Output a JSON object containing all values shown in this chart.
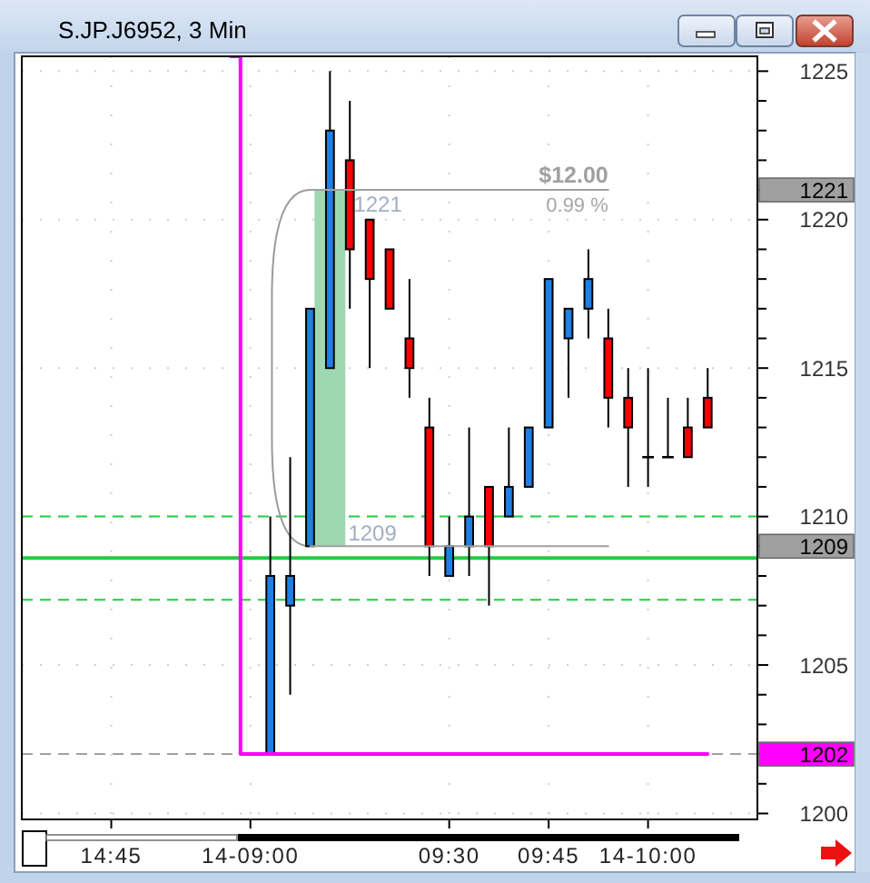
{
  "chart_data": {
    "type": "candlestick",
    "title": "S.JP.J6952, 3 Min",
    "categories": [
      null,
      null,
      null,
      null,
      "14:45",
      null,
      null,
      null,
      null,
      null,
      null,
      "14-09:00",
      null,
      null,
      null,
      null,
      null,
      null,
      null,
      null,
      null,
      "09:30",
      null,
      null,
      null,
      null,
      "09:45",
      null,
      null,
      null,
      null,
      "14-10:00",
      null,
      null,
      null,
      null,
      null
    ],
    "ylim": [
      1199.8,
      1225.5
    ],
    "yticks": [
      1200,
      {
        "value": 1201,
        "label": null
      },
      1202,
      {
        "value": 1203,
        "label": null
      },
      {
        "value": 1204,
        "label": null
      },
      1205,
      {
        "value": 1206,
        "label": null
      },
      {
        "value": 1207,
        "label": null
      },
      {
        "value": 1208,
        "label": null
      },
      1209,
      1210,
      {
        "value": 1211,
        "label": null
      },
      {
        "value": 1212,
        "label": null
      },
      {
        "value": 1213,
        "label": null
      },
      {
        "value": 1214,
        "label": null
      },
      1215,
      {
        "value": 1216,
        "label": null
      },
      {
        "value": 1217,
        "label": null
      },
      {
        "value": 1218,
        "label": null
      },
      {
        "value": 1219,
        "label": null
      },
      1220,
      1221,
      {
        "value": 1222,
        "label": null
      },
      {
        "value": 1223,
        "label": null
      },
      {
        "value": 1224,
        "label": null
      },
      1225
    ],
    "grid": true,
    "series": [
      {
        "type": "bar",
        "base": [
          null,
          null,
          null,
          null,
          null,
          null,
          null,
          null,
          null,
          null,
          null,
          null,
          null,
          null,
          null,
          1209,
          null,
          null,
          null,
          null,
          null,
          null,
          null,
          null,
          null,
          null,
          null,
          null,
          null,
          null,
          null,
          null,
          null,
          null,
          null,
          null,
          null
        ],
        "values": [
          null,
          null,
          null,
          null,
          null,
          null,
          null,
          null,
          null,
          null,
          null,
          null,
          null,
          null,
          null,
          12,
          null,
          null,
          null,
          null,
          null,
          null,
          null,
          null,
          null,
          null,
          null,
          null,
          null,
          null,
          null,
          null,
          null,
          null,
          null,
          null,
          null
        ],
        "color": "#9dd8b3"
      },
      {
        "ohlc": [
          null,
          null,
          null,
          null,
          null,
          null,
          null,
          null,
          null,
          null,
          null,
          null,
          [
            1202,
            1210,
            1202,
            1208
          ],
          [
            1207,
            1212,
            1204,
            1208
          ],
          [
            1209,
            1217,
            1209,
            1217
          ],
          [
            1215,
            1225,
            1215,
            1223
          ],
          [
            1222,
            1224,
            1217,
            1219
          ],
          [
            1220,
            1220,
            1215,
            1218
          ],
          [
            1219,
            1219,
            1217,
            1217
          ],
          [
            1216,
            1218,
            1214,
            1215
          ],
          [
            1213,
            1214,
            1208,
            1209
          ],
          [
            1208,
            1210,
            1208,
            1209
          ],
          [
            1209,
            1213,
            1208,
            1210
          ],
          [
            1211,
            1211,
            1207,
            1209
          ],
          [
            1210,
            1213,
            1210,
            1211
          ],
          [
            1211,
            1213,
            1211,
            1213
          ],
          [
            1213,
            1218,
            1213,
            1218
          ],
          [
            1216,
            1217,
            1214,
            1217
          ],
          [
            1217,
            1219,
            1216,
            1218
          ],
          [
            1216,
            1217,
            1213,
            1214
          ],
          [
            1214,
            1215,
            1211,
            1213
          ],
          [
            1212,
            1215,
            1211,
            1212
          ],
          [
            1212,
            1214,
            1212,
            1212
          ],
          [
            1213,
            1214,
            1212,
            1212
          ],
          [
            1214,
            1215,
            1213,
            1213
          ],
          null,
          null
        ],
        "colors": [
          null,
          null,
          null,
          null,
          null,
          null,
          null,
          null,
          null,
          null,
          null,
          null,
          "#1e7fe6",
          "#1e7fe6",
          "#1e7fe6",
          "#1e7fe6",
          "#ff0000",
          "#ff0000",
          "#ff0000",
          "#ff0000",
          "#ff0000",
          "#1e7fe6",
          "#1e7fe6",
          "#ff0000",
          "#1e7fe6",
          "#1e7fe6",
          "#1e7fe6",
          "#1e7fe6",
          "#1e7fe6",
          "#ff0000",
          "#ff0000",
          "#000000",
          "#000000",
          "#ff0000",
          "#ff0000",
          null,
          null
        ]
      },
      {
        "type": "step",
        "values": [
          null,
          null,
          null,
          null,
          null,
          null,
          null,
          null,
          null,
          null,
          1225.5,
          1202,
          1202,
          1202,
          1202,
          1202,
          1202,
          1202,
          1202,
          1202,
          1202,
          1202,
          1202,
          1202,
          1202,
          1202,
          1202,
          1202,
          1202,
          1202,
          1202,
          1202,
          1202,
          1202,
          1202,
          null,
          null
        ],
        "color": "#ff00ff"
      },
      {
        "type": "line",
        "values": [
          null,
          null,
          null,
          null,
          null,
          null,
          null,
          null,
          null,
          null,
          null,
          null,
          null,
          null,
          1221,
          1221,
          1221,
          1221,
          1221,
          1221,
          1221,
          1221,
          1221,
          1221,
          1221,
          1221,
          1221,
          1221,
          1221,
          1221,
          null,
          null,
          null,
          null,
          null,
          null,
          null
        ],
        "color": "#a0a0a0"
      },
      {
        "type": "line",
        "values": [
          null,
          null,
          null,
          null,
          null,
          null,
          null,
          null,
          null,
          null,
          null,
          null,
          null,
          null,
          1209,
          1209,
          1209,
          1209,
          1209,
          1209,
          1209,
          1209,
          1209,
          1209,
          1209,
          1209,
          1209,
          1209,
          1209,
          1209,
          null,
          null,
          null,
          null,
          null,
          null,
          null
        ],
        "color": "#a0a0a0"
      }
    ],
    "ref_lines": [
      {
        "axis": "y",
        "value": 1202,
        "color": "#a0a0a0",
        "line_style": "dashed"
      },
      {
        "axis": "y",
        "value": 1210,
        "color": "#22cc44",
        "line_style": "dashed"
      },
      {
        "axis": "y",
        "value": 1208.6,
        "color": "#22cc44",
        "line_style": "solid"
      },
      {
        "axis": "y",
        "value": 1207.2,
        "color": "#22cc44",
        "line_style": "dashed"
      }
    ],
    "annotations": [
      {
        "text": "$12.00",
        "y": 1221
      },
      {
        "text": "0.99 %",
        "y": 1221
      },
      {
        "text": "1221",
        "y": 1221
      },
      {
        "text": "1209",
        "y": 1209
      }
    ]
  }
}
